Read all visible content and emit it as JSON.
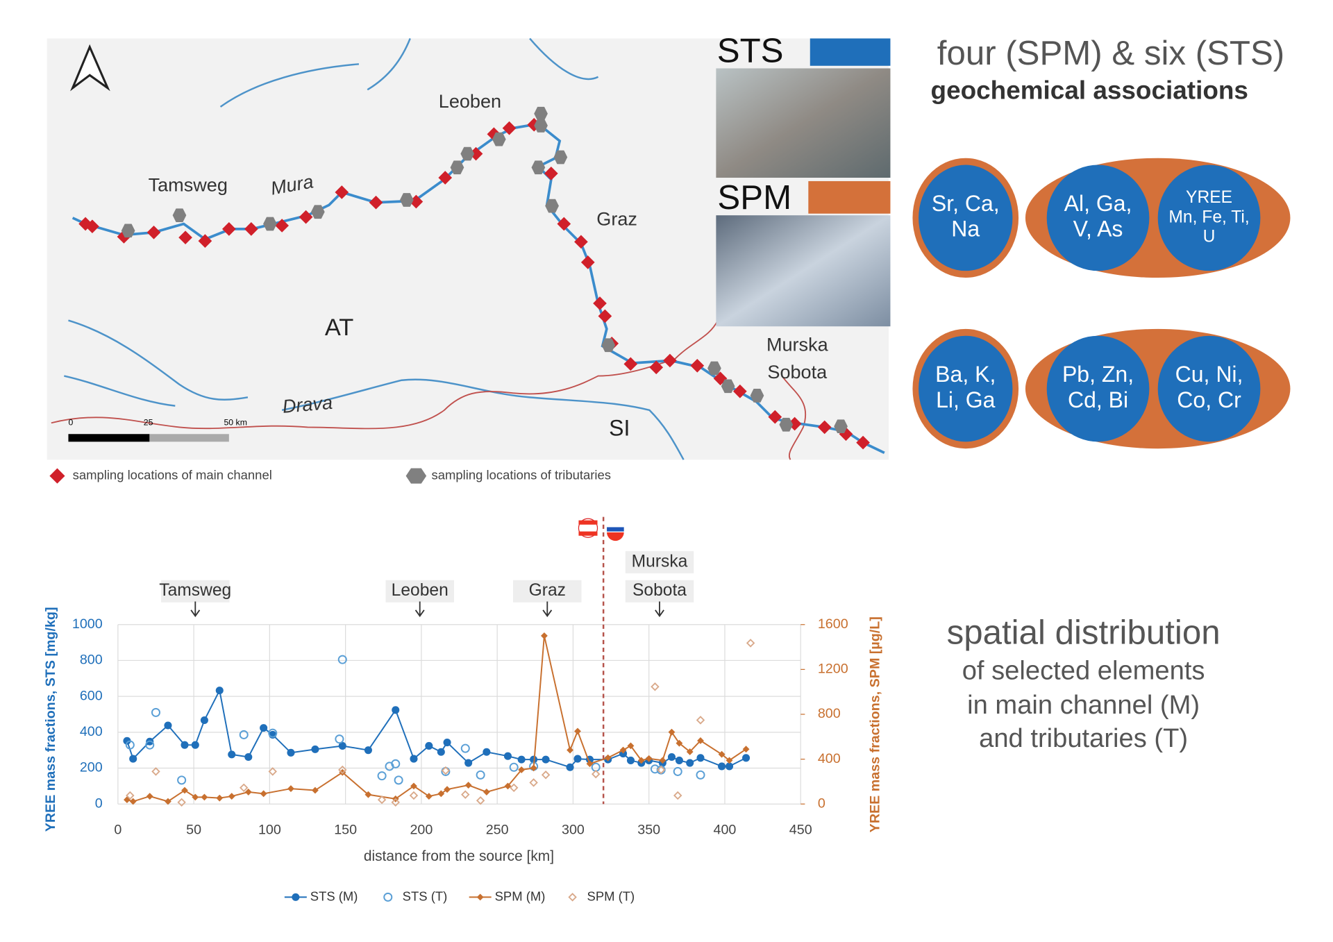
{
  "map": {
    "labels": {
      "leoben": "Leoben",
      "tamsweg": "Tamsweg",
      "mura": "Mura",
      "graz": "Graz",
      "at": "AT",
      "drava": "Drava",
      "si": "SI"
    },
    "murska_sobota": [
      "Murska",
      "Sobota"
    ],
    "scale": [
      "0",
      "25",
      "50 km"
    ],
    "legend": [
      "sampling locations of main channel",
      "sampling locations of tributaries"
    ]
  },
  "samples": {
    "sts": "STS",
    "spm": "SPM"
  },
  "associations": {
    "title": "four (SPM) & six (STS)",
    "subtitle": "geochemical associations",
    "groups": [
      {
        "outer": [
          "Sr, Ca,",
          "Na"
        ],
        "inner": [
          [
            "Al, Ga,",
            "V, As"
          ],
          [
            "YREE",
            "Mn, Fe, Ti,",
            "U"
          ]
        ]
      },
      {
        "outer": [
          "Ba, K,",
          "Li, Ga"
        ],
        "inner": [
          [
            "Pb, Zn,",
            "Cd, Bi"
          ],
          [
            "Cu, Ni,",
            "Co, Cr"
          ]
        ]
      }
    ]
  },
  "caption": {
    "title": "spatial distribution",
    "lines": [
      "of selected elements",
      "in main channel (M)",
      "and tributaries (T)"
    ]
  },
  "chart_data": {
    "type": "line",
    "xlabel": "distance from the source [km]",
    "ylabel": "YREE mass fractions, STS [mg/kg]",
    "y2label": "YREE mass fractions, SPM [µg/L]",
    "xlim": [
      0,
      450
    ],
    "xticks": [
      0,
      50,
      100,
      150,
      200,
      250,
      300,
      350,
      400,
      450
    ],
    "ylim": [
      0,
      1000
    ],
    "yticks": [
      0,
      200,
      400,
      600,
      800,
      1000
    ],
    "y2lim": [
      0,
      1600
    ],
    "y2ticks": [
      0,
      400,
      800,
      1200,
      1600
    ],
    "grid": true,
    "vlines": [
      320
    ],
    "annotations": [
      {
        "text": [
          "Tamsweg"
        ],
        "x": 51
      },
      {
        "text": [
          "Leoben"
        ],
        "x": 199
      },
      {
        "text": [
          "Graz"
        ],
        "x": 283
      },
      {
        "text": [
          "Murska",
          "Sobota"
        ],
        "x": 357
      }
    ],
    "series": [
      {
        "name": "STS (M)",
        "color": "#1f6fba",
        "marker": "circle",
        "line": true,
        "x": [
          6,
          10,
          21,
          33,
          44,
          51,
          57,
          67,
          75,
          86,
          96,
          102,
          114,
          130,
          148,
          165,
          183,
          195,
          205,
          213,
          217,
          231,
          243,
          257,
          266,
          274,
          282,
          298,
          303,
          311,
          323,
          333,
          338,
          345,
          350,
          359,
          365,
          370,
          377,
          384,
          398,
          403,
          414
        ],
        "values": [
          352,
          252,
          348,
          438,
          329,
          329,
          467,
          633,
          276,
          262,
          424,
          386,
          286,
          305,
          324,
          300,
          524,
          252,
          324,
          290,
          343,
          229,
          290,
          267,
          248,
          248,
          248,
          205,
          252,
          248,
          248,
          281,
          243,
          229,
          243,
          229,
          262,
          243,
          229,
          257,
          210,
          210,
          257
        ]
      },
      {
        "name": "STS (T)",
        "color": "#5a9fd6",
        "marker": "open-circle",
        "line": false,
        "x": [
          8,
          21,
          25,
          42,
          83,
          102,
          146,
          148,
          174,
          179,
          183,
          185,
          216,
          229,
          239,
          261,
          274,
          315,
          354,
          358,
          369,
          384
        ],
        "values": [
          329,
          329,
          510,
          133,
          386,
          395,
          362,
          805,
          157,
          210,
          224,
          133,
          181,
          310,
          162,
          205,
          210,
          205,
          195,
          190,
          181,
          162
        ]
      },
      {
        "name": "SPM (M)",
        "color": "#c8702f",
        "marker": "diamond",
        "line": true,
        "axis": "y2",
        "x": [
          6,
          10,
          21,
          33,
          44,
          51,
          57,
          67,
          75,
          86,
          96,
          114,
          130,
          148,
          165,
          183,
          195,
          205,
          213,
          217,
          231,
          243,
          257,
          266,
          274,
          281,
          298,
          303,
          311,
          323,
          333,
          338,
          345,
          350,
          359,
          365,
          370,
          377,
          384,
          398,
          403,
          414
        ],
        "values": [
          38,
          23,
          69,
          23,
          122,
          61,
          61,
          53,
          69,
          107,
          92,
          137,
          122,
          282,
          84,
          46,
          160,
          69,
          92,
          130,
          168,
          107,
          160,
          305,
          321,
          1500,
          481,
          649,
          359,
          412,
          481,
          519,
          389,
          405,
          389,
          641,
          542,
          466,
          565,
          443,
          389,
          489
        ]
      },
      {
        "name": "SPM (T)",
        "color": "#d9a98a",
        "marker": "open-diamond",
        "line": false,
        "axis": "y2",
        "x": [
          8,
          25,
          42,
          83,
          102,
          148,
          174,
          183,
          195,
          216,
          229,
          239,
          261,
          274,
          282,
          315,
          354,
          358,
          369,
          384,
          417
        ],
        "values": [
          76,
          290,
          15,
          145,
          290,
          305,
          38,
          15,
          76,
          298,
          84,
          31,
          145,
          191,
          260,
          267,
          1046,
          305,
          76,
          748,
          1435
        ]
      }
    ]
  }
}
